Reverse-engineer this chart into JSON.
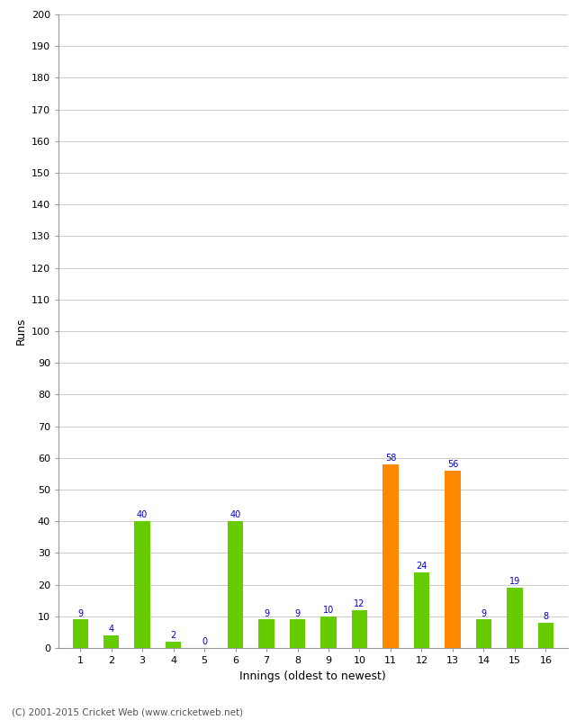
{
  "innings": [
    1,
    2,
    3,
    4,
    5,
    6,
    7,
    8,
    9,
    10,
    11,
    12,
    13,
    14,
    15,
    16
  ],
  "runs": [
    9,
    4,
    40,
    2,
    0,
    40,
    9,
    9,
    10,
    12,
    58,
    24,
    56,
    9,
    19,
    8
  ],
  "bar_colors": [
    "#66cc00",
    "#66cc00",
    "#66cc00",
    "#66cc00",
    "#66cc00",
    "#66cc00",
    "#66cc00",
    "#66cc00",
    "#66cc00",
    "#66cc00",
    "#ff8800",
    "#66cc00",
    "#ff8800",
    "#66cc00",
    "#66cc00",
    "#66cc00"
  ],
  "xlabel": "Innings (oldest to newest)",
  "ylabel": "Runs",
  "ylim": [
    0,
    200
  ],
  "yticks": [
    0,
    10,
    20,
    30,
    40,
    50,
    60,
    70,
    80,
    90,
    100,
    110,
    120,
    130,
    140,
    150,
    160,
    170,
    180,
    190,
    200
  ],
  "label_color": "#0000cc",
  "footer": "(C) 2001-2015 Cricket Web (www.cricketweb.net)",
  "background_color": "#ffffff",
  "grid_color": "#cccccc",
  "bar_width": 0.5,
  "tick_fontsize": 8,
  "label_fontsize": 9,
  "value_label_fontsize": 7
}
